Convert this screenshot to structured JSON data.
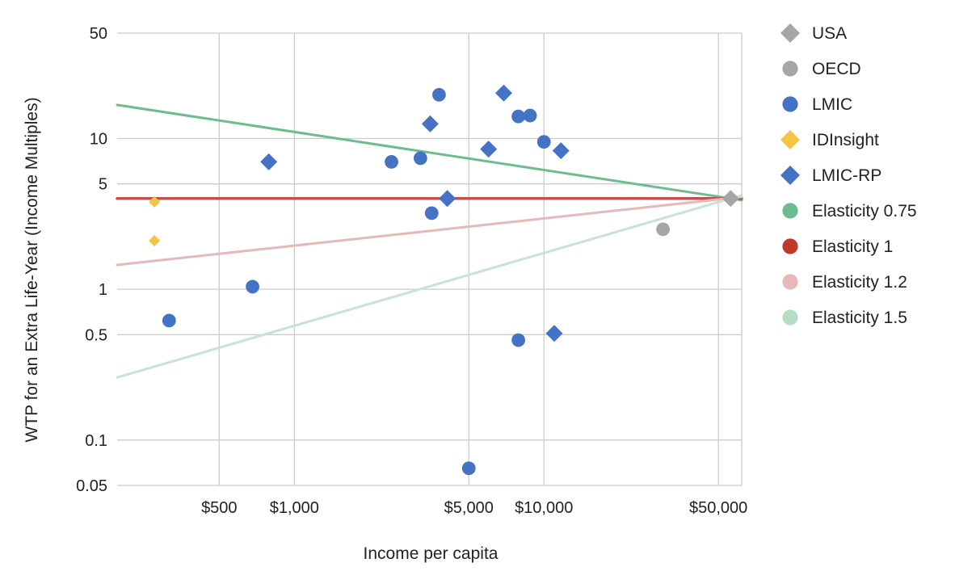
{
  "chart_data": {
    "type": "scatter",
    "xlabel": "Income per capita",
    "ylabel": "WTP for an Extra Life-Year (Income Multiples)",
    "x_scale": "log",
    "y_scale": "log",
    "xlim": [
      195,
      62000
    ],
    "ylim": [
      0.05,
      50
    ],
    "x_ticks": [
      {
        "value": 500,
        "label": "$500"
      },
      {
        "value": 1000,
        "label": "$1,000"
      },
      {
        "value": 5000,
        "label": "$5,000"
      },
      {
        "value": 10000,
        "label": "$10,000"
      },
      {
        "value": 50000,
        "label": "$50,000"
      }
    ],
    "y_ticks": [
      {
        "value": 0.05,
        "label": "0.05"
      },
      {
        "value": 0.1,
        "label": "0.1"
      },
      {
        "value": 0.5,
        "label": "0.5"
      },
      {
        "value": 1,
        "label": "1"
      },
      {
        "value": 5,
        "label": "5"
      },
      {
        "value": 10,
        "label": "10"
      },
      {
        "value": 50,
        "label": "50"
      }
    ],
    "grid": true,
    "legend_position": "right",
    "series": [
      {
        "name": "USA",
        "marker": "diamond",
        "color": "#a6a6a6",
        "points": [
          {
            "x": 56000,
            "y": 4.0
          }
        ]
      },
      {
        "name": "OECD",
        "marker": "circle",
        "color": "#a6a6a6",
        "points": [
          {
            "x": 30000,
            "y": 2.5
          }
        ]
      },
      {
        "name": "LMIC",
        "marker": "circle",
        "color": "#4472c4",
        "points": [
          {
            "x": 315,
            "y": 0.62
          },
          {
            "x": 680,
            "y": 1.04
          },
          {
            "x": 2450,
            "y": 7.0
          },
          {
            "x": 3200,
            "y": 7.4
          },
          {
            "x": 3550,
            "y": 3.2
          },
          {
            "x": 3800,
            "y": 19.5
          },
          {
            "x": 5000,
            "y": 0.065
          },
          {
            "x": 7900,
            "y": 0.46
          },
          {
            "x": 7900,
            "y": 14.0
          },
          {
            "x": 8800,
            "y": 14.2
          },
          {
            "x": 10000,
            "y": 9.5
          }
        ]
      },
      {
        "name": "IDInsight",
        "marker": "diamond",
        "color": "#f4c542",
        "points": [
          {
            "x": 275,
            "y": 3.8
          },
          {
            "x": 275,
            "y": 2.1
          }
        ]
      },
      {
        "name": "LMIC-RP",
        "marker": "diamond",
        "color": "#4472c4",
        "points": [
          {
            "x": 790,
            "y": 7.0
          },
          {
            "x": 3500,
            "y": 12.5
          },
          {
            "x": 4100,
            "y": 4.0
          },
          {
            "x": 6000,
            "y": 8.5
          },
          {
            "x": 6900,
            "y": 20.0
          },
          {
            "x": 11000,
            "y": 0.51
          },
          {
            "x": 11700,
            "y": 8.3
          }
        ]
      }
    ],
    "lines": [
      {
        "name": "Elasticity 0.75",
        "color": "#6cbc8e",
        "width": 3,
        "points": [
          {
            "x": 195,
            "y": 16.7
          },
          {
            "x": 62000,
            "y": 3.9
          }
        ]
      },
      {
        "name": "Elasticity 1",
        "color": "#c0504d",
        "width": 3.5,
        "points": [
          {
            "x": 195,
            "y": 4.0
          },
          {
            "x": 62000,
            "y": 4.0
          }
        ]
      },
      {
        "name": "Elasticity 1.2",
        "color": "#e6b8b7",
        "width": 3,
        "points": [
          {
            "x": 195,
            "y": 1.45
          },
          {
            "x": 62000,
            "y": 4.1
          }
        ]
      },
      {
        "name": "Elasticity 1.5",
        "color": "#c6e3d3",
        "width": 3,
        "points": [
          {
            "x": 195,
            "y": 0.26
          },
          {
            "x": 62000,
            "y": 4.2
          }
        ]
      }
    ],
    "legend": [
      {
        "label": "USA",
        "marker": "diamond",
        "color": "#a6a6a6"
      },
      {
        "label": "OECD",
        "marker": "circle",
        "color": "#a6a6a6"
      },
      {
        "label": "LMIC",
        "marker": "circle",
        "color": "#4472c4"
      },
      {
        "label": "IDInsight",
        "marker": "diamond",
        "color": "#f4c542"
      },
      {
        "label": "LMIC-RP",
        "marker": "diamond",
        "color": "#4472c4"
      },
      {
        "label": "Elasticity 0.75",
        "marker": "circle",
        "color": "#6cbc8e"
      },
      {
        "label": "Elasticity 1",
        "marker": "circle",
        "color": "#c0392b"
      },
      {
        "label": "Elasticity 1.2",
        "marker": "circle",
        "color": "#e6b8b7"
      },
      {
        "label": "Elasticity 1.5",
        "marker": "circle",
        "color": "#b5dcc6"
      }
    ]
  }
}
